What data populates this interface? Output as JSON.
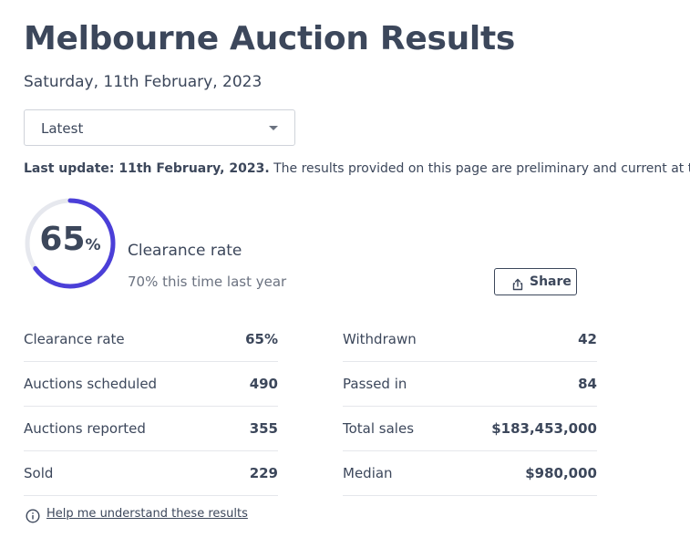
{
  "page": {
    "title": "Melbourne Auction Results",
    "date": "Saturday, 11th February, 2023"
  },
  "filter": {
    "selected": "Latest"
  },
  "notice": {
    "bold": "Last update: 11th February, 2023.",
    "text": " The results provided on this page are preliminary and current at the time of publishing."
  },
  "clearance": {
    "value": "65",
    "unit": "%",
    "fraction": 0.65,
    "label": "Clearance rate",
    "last_year": "70% this time last year",
    "ring_color": "#4b3fd8",
    "track_color": "#e6e8ee"
  },
  "share": {
    "label": "Share"
  },
  "stats_left": [
    {
      "label": "Clearance rate",
      "value": "65%"
    },
    {
      "label": "Auctions scheduled",
      "value": "490"
    },
    {
      "label": "Auctions reported",
      "value": "355"
    },
    {
      "label": "Sold",
      "value": "229"
    }
  ],
  "stats_right": [
    {
      "label": "Withdrawn",
      "value": "42"
    },
    {
      "label": "Passed in",
      "value": "84"
    },
    {
      "label": "Total sales",
      "value": "$183,453,000"
    },
    {
      "label": "Median",
      "value": "$980,000"
    }
  ],
  "help": {
    "label": "Help me understand these results"
  }
}
